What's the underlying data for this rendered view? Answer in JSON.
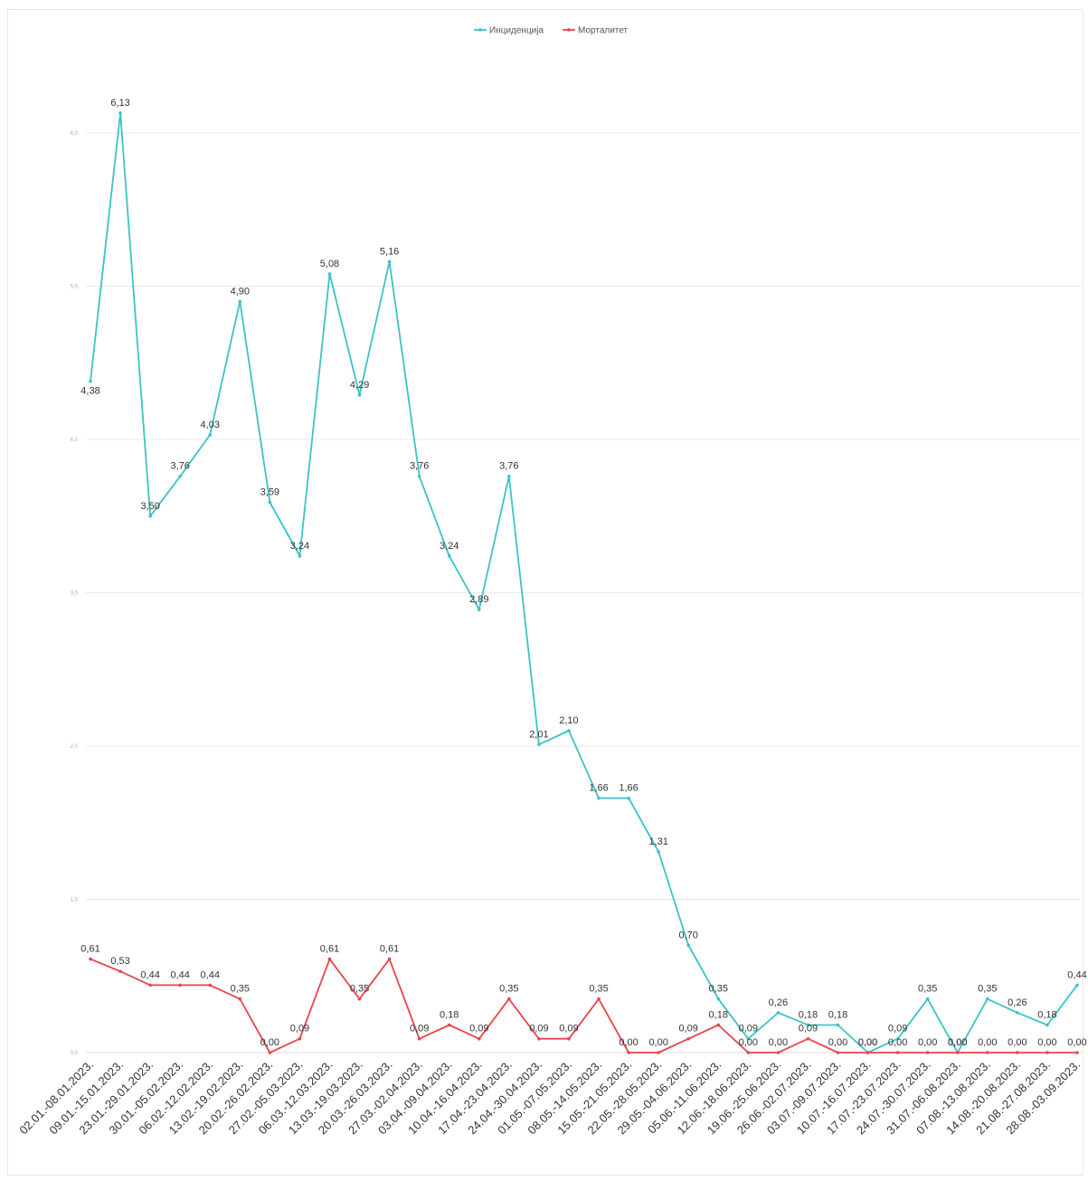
{
  "chart_data": {
    "type": "line",
    "title": "",
    "xlabel": "",
    "ylabel": "",
    "ylim": [
      0,
      6
    ],
    "y_ticks": [
      "0,0",
      "1,0",
      "2,0",
      "3,0",
      "4,0",
      "5,0",
      "6,0"
    ],
    "grid": true,
    "legend_position": "top-center",
    "categories": [
      "02.01.-08.01.2023.",
      "09.01.-15.01.2023.",
      "23.01.-29.01.2023.",
      "30.01.-05.02.2023.",
      "06.02.-12.02.2023.",
      "13.02.-19.02.2023.",
      "20.02.-26.02.2023.",
      "27.02.-05.03.2023.",
      "06.03.-12.03.2023.",
      "13.03.-19.03.2023.",
      "20.03.-26.03.2023.",
      "27.03.-02.04.2023.",
      "03.04.-09.04.2023.",
      "10.04.-16.04.2023.",
      "17.04.-23.04.2023.",
      "24.04.-30.04.2023.",
      "01.05.-07.05.2023.",
      "08.05.-14.05.2023.",
      "15.05.-21.05.2023.",
      "22.05.-28.05.2023.",
      "29.05.-04.06.2023.",
      "05.06.-11.06.2023.",
      "12.06.-18.06.2023.",
      "19.06.-25.06.2023.",
      "26.06.-02.07.2023.",
      "03.07.-09.07.2023.",
      "10.07.-16.07.2023.",
      "17.07.-23.07.2023.",
      "24.07.-30.07.2023.",
      "31.07.-06.08.2023.",
      "07.08.-13.08.2023.",
      "14.08.-20.08.2023.",
      "21.08.-27.08.2023.",
      "28.08.-03.09.2023."
    ],
    "series": [
      {
        "name": "Инциденција",
        "color": "#3cc3c6",
        "values": [
          4.38,
          6.13,
          3.5,
          3.76,
          4.03,
          4.9,
          3.59,
          3.24,
          5.08,
          4.29,
          5.16,
          3.76,
          3.24,
          2.89,
          3.76,
          2.01,
          2.1,
          1.66,
          1.66,
          1.31,
          0.7,
          0.35,
          0.09,
          0.26,
          0.18,
          0.18,
          0.0,
          0.09,
          0.35,
          0.0,
          0.35,
          0.26,
          0.18,
          0.44
        ],
        "labels": [
          "4,38",
          "6,13",
          "3,50",
          "3,76",
          "4,03",
          "4,90",
          "3,59",
          "3,24",
          "5,08",
          "4,29",
          "5,16",
          "3,76",
          "3,24",
          "2,89",
          "3,76",
          "2,01",
          "2,10",
          "1,66",
          "1,66",
          "1,31",
          "0,70",
          "0,35",
          "0,09",
          "0,26",
          "0,18",
          "0,18",
          "0,00",
          "0,09",
          "0,35",
          "0,00",
          "0,35",
          "0,26",
          "0,18",
          "0,44"
        ]
      },
      {
        "name": "Морталитет",
        "color": "#e8454a",
        "values": [
          0.61,
          0.53,
          0.44,
          0.44,
          0.44,
          0.35,
          0.0,
          0.09,
          0.61,
          0.35,
          0.61,
          0.09,
          0.18,
          0.09,
          0.35,
          0.09,
          0.09,
          0.35,
          0.0,
          0.0,
          0.09,
          0.18,
          0.0,
          0.0,
          0.09,
          0.0,
          0.0,
          0.0,
          0.0,
          0.0,
          0.0,
          0.0,
          0.0,
          0.0
        ],
        "labels": [
          "0,61",
          "0,53",
          "0,44",
          "0,44",
          "0,44",
          "0,35",
          "0,00",
          "0,09",
          "0,61",
          "0,35",
          "0,61",
          "0,09",
          "0,18",
          "0,09",
          "0,35",
          "0,09",
          "0,09",
          "0,35",
          "0,00",
          "0,00",
          "0,09",
          "0,18",
          "0,00",
          "0,00",
          "0,09",
          "0,00",
          "0,00",
          "0,00",
          "0,00",
          "0,00",
          "0,00",
          "0,00",
          "0,00",
          "0,00"
        ]
      }
    ]
  }
}
